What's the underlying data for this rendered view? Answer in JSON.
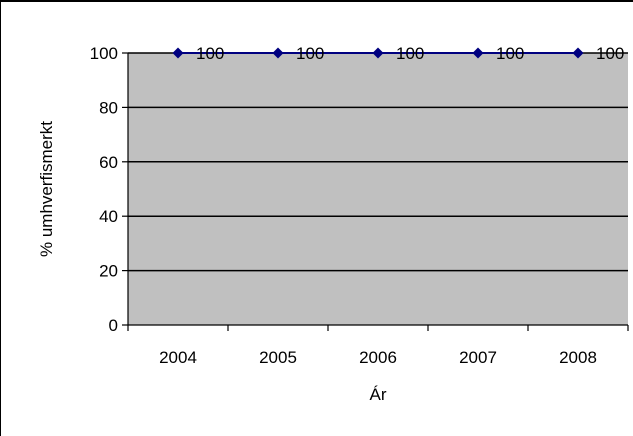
{
  "chart_data": {
    "type": "line",
    "title": "",
    "xlabel": "Ár",
    "ylabel": "% umhverfismerkt",
    "categories": [
      "2004",
      "2005",
      "2006",
      "2007",
      "2008"
    ],
    "series": [
      {
        "values": [
          100,
          100,
          100,
          100,
          100
        ],
        "color": "#000080"
      }
    ],
    "data_labels": [
      "100",
      "100",
      "100",
      "100",
      "100"
    ],
    "ylim": [
      0,
      100
    ],
    "yticks": [
      "0",
      "20",
      "40",
      "60",
      "80",
      "100"
    ],
    "grid": true,
    "legend": "none",
    "plot_background": "#c0c0c0"
  }
}
